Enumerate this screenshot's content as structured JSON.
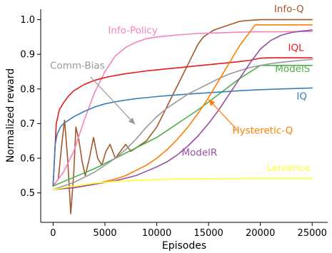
{
  "chart_data": {
    "type": "line",
    "xlabel": "Episodes",
    "ylabel": "Normalized reward",
    "xlim": [
      -1200,
      26500
    ],
    "ylim": [
      0.415,
      1.03
    ],
    "xticks": [
      0,
      5000,
      10000,
      15000,
      20000,
      25000
    ],
    "yticks": [
      0.5,
      0.6,
      0.7,
      0.8,
      0.9,
      1.0
    ],
    "xtick_labels": [
      "0",
      "5000",
      "10000",
      "15000",
      "20000",
      "25000"
    ],
    "ytick_labels": [
      "0.5",
      "0.6",
      "0.7",
      "0.8",
      "0.9",
      "1.0"
    ],
    "grid": false,
    "legend": "none (inline labels)",
    "series": [
      {
        "name": "Info-Q",
        "color": "#a65628",
        "label_anchor": "end",
        "x": [
          0,
          500,
          800,
          1100,
          1400,
          1700,
          2000,
          2200,
          2500,
          2800,
          3100,
          3500,
          3900,
          4300,
          4700,
          5100,
          5500,
          6000,
          6500,
          7000,
          7500,
          8000,
          8500,
          9000,
          9500,
          10000,
          10500,
          11000,
          11500,
          12000,
          12500,
          13000,
          13500,
          14000,
          14500,
          15000,
          15500,
          16000,
          16500,
          17000,
          17500,
          18000,
          18500,
          19000,
          19500,
          20000,
          20500,
          21000,
          22000,
          23000,
          24000,
          25000
        ],
        "y": [
          0.52,
          0.54,
          0.63,
          0.71,
          0.6,
          0.44,
          0.56,
          0.69,
          0.65,
          0.59,
          0.55,
          0.6,
          0.66,
          0.6,
          0.58,
          0.62,
          0.64,
          0.6,
          0.62,
          0.64,
          0.62,
          0.63,
          0.64,
          0.65,
          0.67,
          0.69,
          0.72,
          0.75,
          0.78,
          0.81,
          0.84,
          0.87,
          0.9,
          0.93,
          0.95,
          0.96,
          0.97,
          0.975,
          0.98,
          0.985,
          0.99,
          0.995,
          0.997,
          0.998,
          0.999,
          1.0,
          1.0,
          1.0,
          1.0,
          1.0,
          1.0,
          1.0
        ],
        "label": {
          "text": "Info-Q",
          "x": 24200,
          "y": 1.022
        }
      },
      {
        "name": "Info-Policy",
        "color": "#f781bf",
        "label_anchor": "start",
        "x": [
          0,
          1000,
          2000,
          3000,
          4000,
          5000,
          6000,
          7000,
          8000,
          9000,
          10000,
          12000,
          14000,
          16000,
          18000,
          20000,
          22000,
          25000
        ],
        "y": [
          0.52,
          0.56,
          0.62,
          0.71,
          0.79,
          0.85,
          0.895,
          0.92,
          0.935,
          0.945,
          0.95,
          0.956,
          0.96,
          0.962,
          0.964,
          0.965,
          0.965,
          0.966
        ],
        "label": {
          "text": "Info-Policy",
          "x": 5300,
          "y": 0.96
        }
      },
      {
        "name": "IQL",
        "color": "#e41a1c",
        "label_anchor": "end",
        "x": [
          0,
          300,
          600,
          1000,
          1500,
          2000,
          3000,
          4000,
          5000,
          6000,
          7000,
          8000,
          9000,
          10000,
          11000,
          12000,
          13000,
          14000,
          15000,
          16000,
          17000,
          18000,
          19000,
          20000,
          21000,
          22000,
          23000,
          24000,
          25000
        ],
        "y": [
          0.52,
          0.7,
          0.74,
          0.76,
          0.78,
          0.795,
          0.813,
          0.825,
          0.833,
          0.839,
          0.844,
          0.848,
          0.852,
          0.855,
          0.858,
          0.861,
          0.864,
          0.867,
          0.87,
          0.873,
          0.876,
          0.879,
          0.883,
          0.889,
          0.89,
          0.89,
          0.89,
          0.89,
          0.89
        ],
        "label": {
          "text": "IQL",
          "x": 24200,
          "y": 0.91
        }
      },
      {
        "name": "ModelS",
        "color": "#4daf4a",
        "label_anchor": "end",
        "x": [
          0,
          2000,
          4000,
          6000,
          8000,
          10000,
          12000,
          14000,
          16000,
          18000,
          20000,
          21000,
          22000,
          23000,
          24000,
          25000
        ],
        "y": [
          0.52,
          0.545,
          0.57,
          0.6,
          0.63,
          0.66,
          0.7,
          0.74,
          0.785,
          0.83,
          0.868,
          0.868,
          0.868,
          0.868,
          0.868,
          0.868
        ],
        "label": {
          "text": "ModelS",
          "x": 24800,
          "y": 0.849
        }
      },
      {
        "name": "IQ",
        "color": "#377eb8",
        "label_anchor": "end",
        "x": [
          0,
          200,
          400,
          700,
          1000,
          1500,
          2000,
          3000,
          4000,
          5000,
          6000,
          7000,
          8000,
          9000,
          10000,
          12000,
          14000,
          16000,
          18000,
          20000,
          22000,
          25000
        ],
        "y": [
          0.52,
          0.64,
          0.67,
          0.69,
          0.7,
          0.71,
          0.72,
          0.735,
          0.748,
          0.757,
          0.763,
          0.768,
          0.772,
          0.775,
          0.778,
          0.783,
          0.787,
          0.791,
          0.795,
          0.798,
          0.8,
          0.803
        ],
        "label": {
          "text": "IQ",
          "x": 24500,
          "y": 0.77
        }
      },
      {
        "name": "Comm-Bias",
        "color": "#999999",
        "label_anchor": "start",
        "x": [
          0,
          1000,
          2000,
          3000,
          4000,
          5000,
          6000,
          7000,
          8000,
          9000,
          10000,
          11000,
          12000,
          13000,
          14000,
          15000,
          16000,
          17000,
          18000,
          19000,
          20000,
          21000,
          22000,
          23000,
          24000,
          25000
        ],
        "y": [
          0.51,
          0.52,
          0.53,
          0.545,
          0.56,
          0.58,
          0.6,
          0.625,
          0.655,
          0.69,
          0.72,
          0.745,
          0.765,
          0.785,
          0.8,
          0.815,
          0.83,
          0.843,
          0.853,
          0.862,
          0.868,
          0.873,
          0.877,
          0.88,
          0.883,
          0.885
        ],
        "label": {
          "text": "Comm-Bias",
          "x": -300,
          "y": 0.858
        }
      },
      {
        "name": "Hysteretic-Q",
        "color": "#ff7f00",
        "label_anchor": "start",
        "x": [
          0,
          2000,
          4000,
          6000,
          7000,
          8000,
          9000,
          10000,
          11000,
          12000,
          13000,
          14000,
          15000,
          16000,
          17000,
          18000,
          19000,
          19500,
          20000,
          21000,
          22000,
          25000
        ],
        "y": [
          0.51,
          0.515,
          0.525,
          0.54,
          0.55,
          0.565,
          0.58,
          0.6,
          0.625,
          0.655,
          0.69,
          0.73,
          0.775,
          0.825,
          0.875,
          0.925,
          0.965,
          0.985,
          0.985,
          0.985,
          0.985,
          0.985
        ],
        "label": {
          "text": "Hysteretic-Q",
          "x": 17300,
          "y": 0.671
        }
      },
      {
        "name": "ModelR",
        "color": "#984ea3",
        "label_anchor": "start",
        "x": [
          0,
          2000,
          4000,
          6000,
          8000,
          10000,
          11000,
          12000,
          13000,
          14000,
          15000,
          16000,
          17000,
          18000,
          19000,
          20000,
          21000,
          22000,
          23000,
          24000,
          25000
        ],
        "y": [
          0.51,
          0.515,
          0.525,
          0.535,
          0.55,
          0.575,
          0.59,
          0.61,
          0.635,
          0.665,
          0.7,
          0.74,
          0.785,
          0.83,
          0.875,
          0.915,
          0.94,
          0.955,
          0.963,
          0.967,
          0.97
        ],
        "label": {
          "text": "ModelR",
          "x": 12400,
          "y": 0.607
        }
      },
      {
        "name": "Lenience",
        "color": "#ffff33",
        "label_anchor": "end",
        "x": [
          0,
          1000,
          2000,
          4000,
          6000,
          8000,
          10000,
          12000,
          15000,
          20000,
          25000
        ],
        "y": [
          0.51,
          0.515,
          0.52,
          0.528,
          0.533,
          0.536,
          0.538,
          0.54,
          0.541,
          0.542,
          0.542
        ],
        "label": {
          "text": "Lenience",
          "x": 24800,
          "y": 0.563
        }
      }
    ],
    "annotations": [
      {
        "text": "Comm-Bias",
        "color": "#999999",
        "from": [
          3600,
          0.835
        ],
        "to": [
          7900,
          0.698
        ]
      },
      {
        "text": "Hysteretic-Q",
        "color": "#ff7f00",
        "from": [
          17700,
          0.684
        ],
        "to": [
          15000,
          0.77
        ]
      }
    ]
  }
}
